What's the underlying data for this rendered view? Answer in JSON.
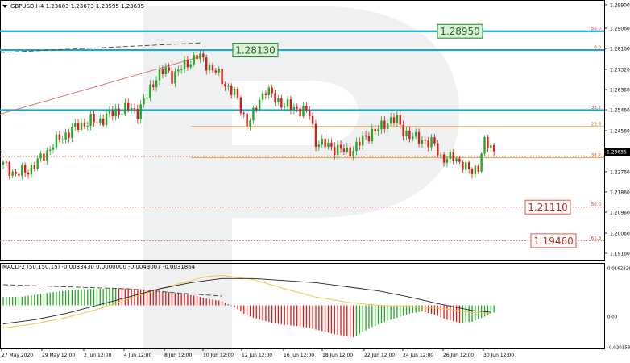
{
  "colors": {
    "bull": "#1faa1f",
    "bear": "#e01818",
    "cyan_level": "#17a9cf",
    "orange_level": "#f3a23a",
    "red_level": "#e2543e",
    "green_box": "#1b8a2c",
    "macd_line": "#222222",
    "signal_line": "#f2c649",
    "grid": "#9a9a9a"
  },
  "chart_data": [
    {
      "type": "candlestick",
      "title": "GBPUSD,H4  1.23603 1.23673 1.23595 1.23635",
      "symbol": "GBPUSD",
      "timeframe": "H4",
      "ohlc_header": {
        "open": 1.23603,
        "high": 1.23673,
        "low": 1.23595,
        "close": 1.23635
      },
      "current_price_label": "1.23635",
      "ylim": [
        1.188,
        1.3025
      ],
      "y_ticks": [
        "1.29900",
        "1.29060",
        "1.28160",
        "1.27320",
        "1.26360",
        "1.25460",
        "1.24560",
        "1.23660",
        "1.22760",
        "1.21860",
        "1.20960",
        "1.20060",
        "1.19160"
      ],
      "x_ticks": [
        "27 May 2020",
        "29 May 12:00",
        "2 Jun 12:00",
        "4 Jun 12:00",
        "8 Jun 12:00",
        "10 Jun 12:00",
        "12 Jun 12:00",
        "16 Jun 12:00",
        "18 Jun 12:00",
        "22 Jun 12:00",
        "24 Jun 12:00",
        "26 Jun 12:00",
        "30 Jun 12:00"
      ],
      "close_path": [
        [
          0,
          1.2305
        ],
        [
          4,
          1.2262
        ],
        [
          8,
          1.228
        ],
        [
          12,
          1.233
        ],
        [
          16,
          1.2395
        ],
        [
          20,
          1.244
        ],
        [
          24,
          1.2478
        ],
        [
          28,
          1.25
        ],
        [
          30,
          1.2495
        ],
        [
          33,
          1.252
        ],
        [
          37,
          1.2545
        ],
        [
          40,
          1.2555
        ],
        [
          43,
          1.254
        ],
        [
          46,
          1.261
        ],
        [
          49,
          1.27
        ],
        [
          52,
          1.2725
        ],
        [
          54,
          1.27
        ],
        [
          56,
          1.2725
        ],
        [
          58,
          1.2745
        ],
        [
          60,
          1.277
        ],
        [
          62,
          1.279
        ],
        [
          64,
          1.277
        ],
        [
          66,
          1.274
        ],
        [
          68,
          1.272
        ],
        [
          70,
          1.268
        ],
        [
          72,
          1.265
        ],
        [
          74,
          1.262
        ],
        [
          76,
          1.256
        ],
        [
          78,
          1.249
        ],
        [
          80,
          1.2525
        ],
        [
          82,
          1.26
        ],
        [
          84,
          1.264
        ],
        [
          86,
          1.261
        ],
        [
          88,
          1.259
        ],
        [
          90,
          1.257
        ],
        [
          92,
          1.256
        ],
        [
          94,
          1.2555
        ],
        [
          96,
          1.2545
        ],
        [
          98,
          1.253
        ],
        [
          100,
          1.241
        ],
        [
          102,
          1.2395
        ],
        [
          104,
          1.239
        ],
        [
          106,
          1.238
        ],
        [
          108,
          1.237
        ],
        [
          110,
          1.236
        ],
        [
          112,
          1.2375
        ],
        [
          114,
          1.24
        ],
        [
          116,
          1.243
        ],
        [
          118,
          1.245
        ],
        [
          120,
          1.246
        ],
        [
          122,
          1.249
        ],
        [
          124,
          1.2505
        ],
        [
          126,
          1.25
        ],
        [
          128,
          1.246
        ],
        [
          130,
          1.243
        ],
        [
          132,
          1.242
        ],
        [
          134,
          1.242
        ],
        [
          136,
          1.24
        ],
        [
          138,
          1.2395
        ],
        [
          140,
          1.234
        ],
        [
          142,
          1.2325
        ],
        [
          144,
          1.234
        ],
        [
          146,
          1.232
        ],
        [
          148,
          1.2285
        ],
        [
          150,
          1.2275
        ],
        [
          152,
          1.23
        ],
        [
          154,
          1.24
        ],
        [
          156,
          1.2382
        ],
        [
          157,
          1.2364
        ]
      ],
      "levels": [
        {
          "name": "cyan-level-high",
          "price": 1.29,
          "style": "cyan-thick"
        },
        {
          "name": "cyan-level-2813",
          "price": 1.2816,
          "style": "cyan-thick"
        },
        {
          "name": "cyan-level-low",
          "price": 1.2548,
          "style": "cyan-thick"
        },
        {
          "name": "orange-fib-236",
          "price": 1.2475,
          "style": "orange",
          "label": "23.6"
        },
        {
          "name": "orange-fib-382",
          "price": 1.2335,
          "style": "orange",
          "label": "38.2"
        },
        {
          "name": "red-fib-382-dot",
          "price": 1.2337,
          "style": "red-dot"
        },
        {
          "name": "red-fib-500",
          "price": 1.2115,
          "style": "red-dot",
          "label": "50.0"
        },
        {
          "name": "red-fib-618",
          "price": 1.1965,
          "style": "red-dot",
          "label": "61.8"
        },
        {
          "name": "red-fib-00",
          "price": 1.2816,
          "style": "none",
          "label": "0.0"
        },
        {
          "name": "red-fib-top-500",
          "price": 1.29,
          "style": "none",
          "label": "50.0"
        },
        {
          "name": "red-fib-upper-382",
          "price": 1.2548,
          "style": "none",
          "label": "38.2"
        }
      ],
      "target_boxes": [
        {
          "name": "target-box-128950",
          "text": "1.28950",
          "price": 1.29,
          "color": "green"
        },
        {
          "name": "target-box-128130",
          "text": "1.28130",
          "price": 1.2816,
          "color": "green"
        },
        {
          "name": "target-box-121110",
          "text": "1.21110",
          "price": 1.2115,
          "color": "red"
        },
        {
          "name": "target-box-119460",
          "text": "1.19460",
          "price": 1.1965,
          "color": "red"
        }
      ]
    },
    {
      "type": "histogram",
      "title": "MACD-2 (50,150,15) -0.0033430 0.0000000 -0.0043007 -0.0031864",
      "indicator": "MACD-2",
      "params": "(50,150,15)",
      "header_values": [
        "-0.0033430",
        "0.0000000",
        "-0.0043007",
        "-0.0031864"
      ],
      "y_ticks": [
        "0.0162326",
        "0.00",
        "-0.0201580"
      ],
      "ylim": [
        -0.020158,
        0.0162326
      ],
      "hist_path": [
        [
          0,
          0.004
        ],
        [
          6,
          0.0042
        ],
        [
          12,
          0.0055
        ],
        [
          18,
          0.0068
        ],
        [
          24,
          0.0076
        ],
        [
          30,
          0.008
        ],
        [
          36,
          0.0082
        ],
        [
          42,
          0.008
        ],
        [
          48,
          0.0074
        ],
        [
          54,
          0.0062
        ],
        [
          60,
          0.005
        ],
        [
          66,
          0.003
        ],
        [
          70,
          0.002
        ],
        [
          74,
          -0.001
        ],
        [
          78,
          -0.005
        ],
        [
          82,
          -0.007
        ],
        [
          86,
          -0.0085
        ],
        [
          90,
          -0.0095
        ],
        [
          94,
          -0.01
        ],
        [
          98,
          -0.011
        ],
        [
          102,
          -0.0125
        ],
        [
          106,
          -0.014
        ],
        [
          110,
          -0.015
        ],
        [
          112,
          -0.0155
        ],
        [
          115,
          -0.013
        ],
        [
          118,
          -0.0105
        ],
        [
          122,
          -0.008
        ],
        [
          126,
          -0.006
        ],
        [
          130,
          -0.004
        ],
        [
          134,
          -0.003
        ],
        [
          138,
          -0.0045
        ],
        [
          142,
          -0.007
        ],
        [
          146,
          -0.0085
        ],
        [
          150,
          -0.008
        ],
        [
          154,
          -0.0055
        ],
        [
          157,
          -0.0035
        ]
      ],
      "macd_path": [
        [
          0,
          -0.009
        ],
        [
          10,
          -0.007
        ],
        [
          20,
          -0.004
        ],
        [
          30,
          0.0
        ],
        [
          40,
          0.004
        ],
        [
          50,
          0.008
        ],
        [
          60,
          0.011
        ],
        [
          70,
          0.013
        ],
        [
          80,
          0.013
        ],
        [
          90,
          0.012
        ],
        [
          100,
          0.011
        ],
        [
          110,
          0.009
        ],
        [
          120,
          0.007
        ],
        [
          130,
          0.004
        ],
        [
          140,
          0.0005
        ],
        [
          150,
          -0.0025
        ],
        [
          157,
          -0.0035
        ]
      ],
      "signal_path": [
        [
          0,
          -0.011
        ],
        [
          10,
          -0.009
        ],
        [
          20,
          -0.006
        ],
        [
          30,
          -0.002
        ],
        [
          40,
          0.003
        ],
        [
          50,
          0.008
        ],
        [
          60,
          0.012
        ],
        [
          65,
          0.014
        ],
        [
          70,
          0.0145
        ],
        [
          80,
          0.0125
        ],
        [
          90,
          0.008
        ],
        [
          100,
          0.004
        ],
        [
          110,
          0.0015
        ],
        [
          120,
          0.0
        ],
        [
          130,
          -0.0005
        ],
        [
          140,
          -0.0015
        ],
        [
          150,
          -0.0035
        ],
        [
          157,
          -0.004
        ]
      ],
      "dashed_path": [
        [
          0,
          0.01
        ],
        [
          20,
          0.009
        ],
        [
          40,
          0.008
        ],
        [
          60,
          0.0055
        ],
        [
          70,
          0.0045
        ]
      ]
    }
  ]
}
